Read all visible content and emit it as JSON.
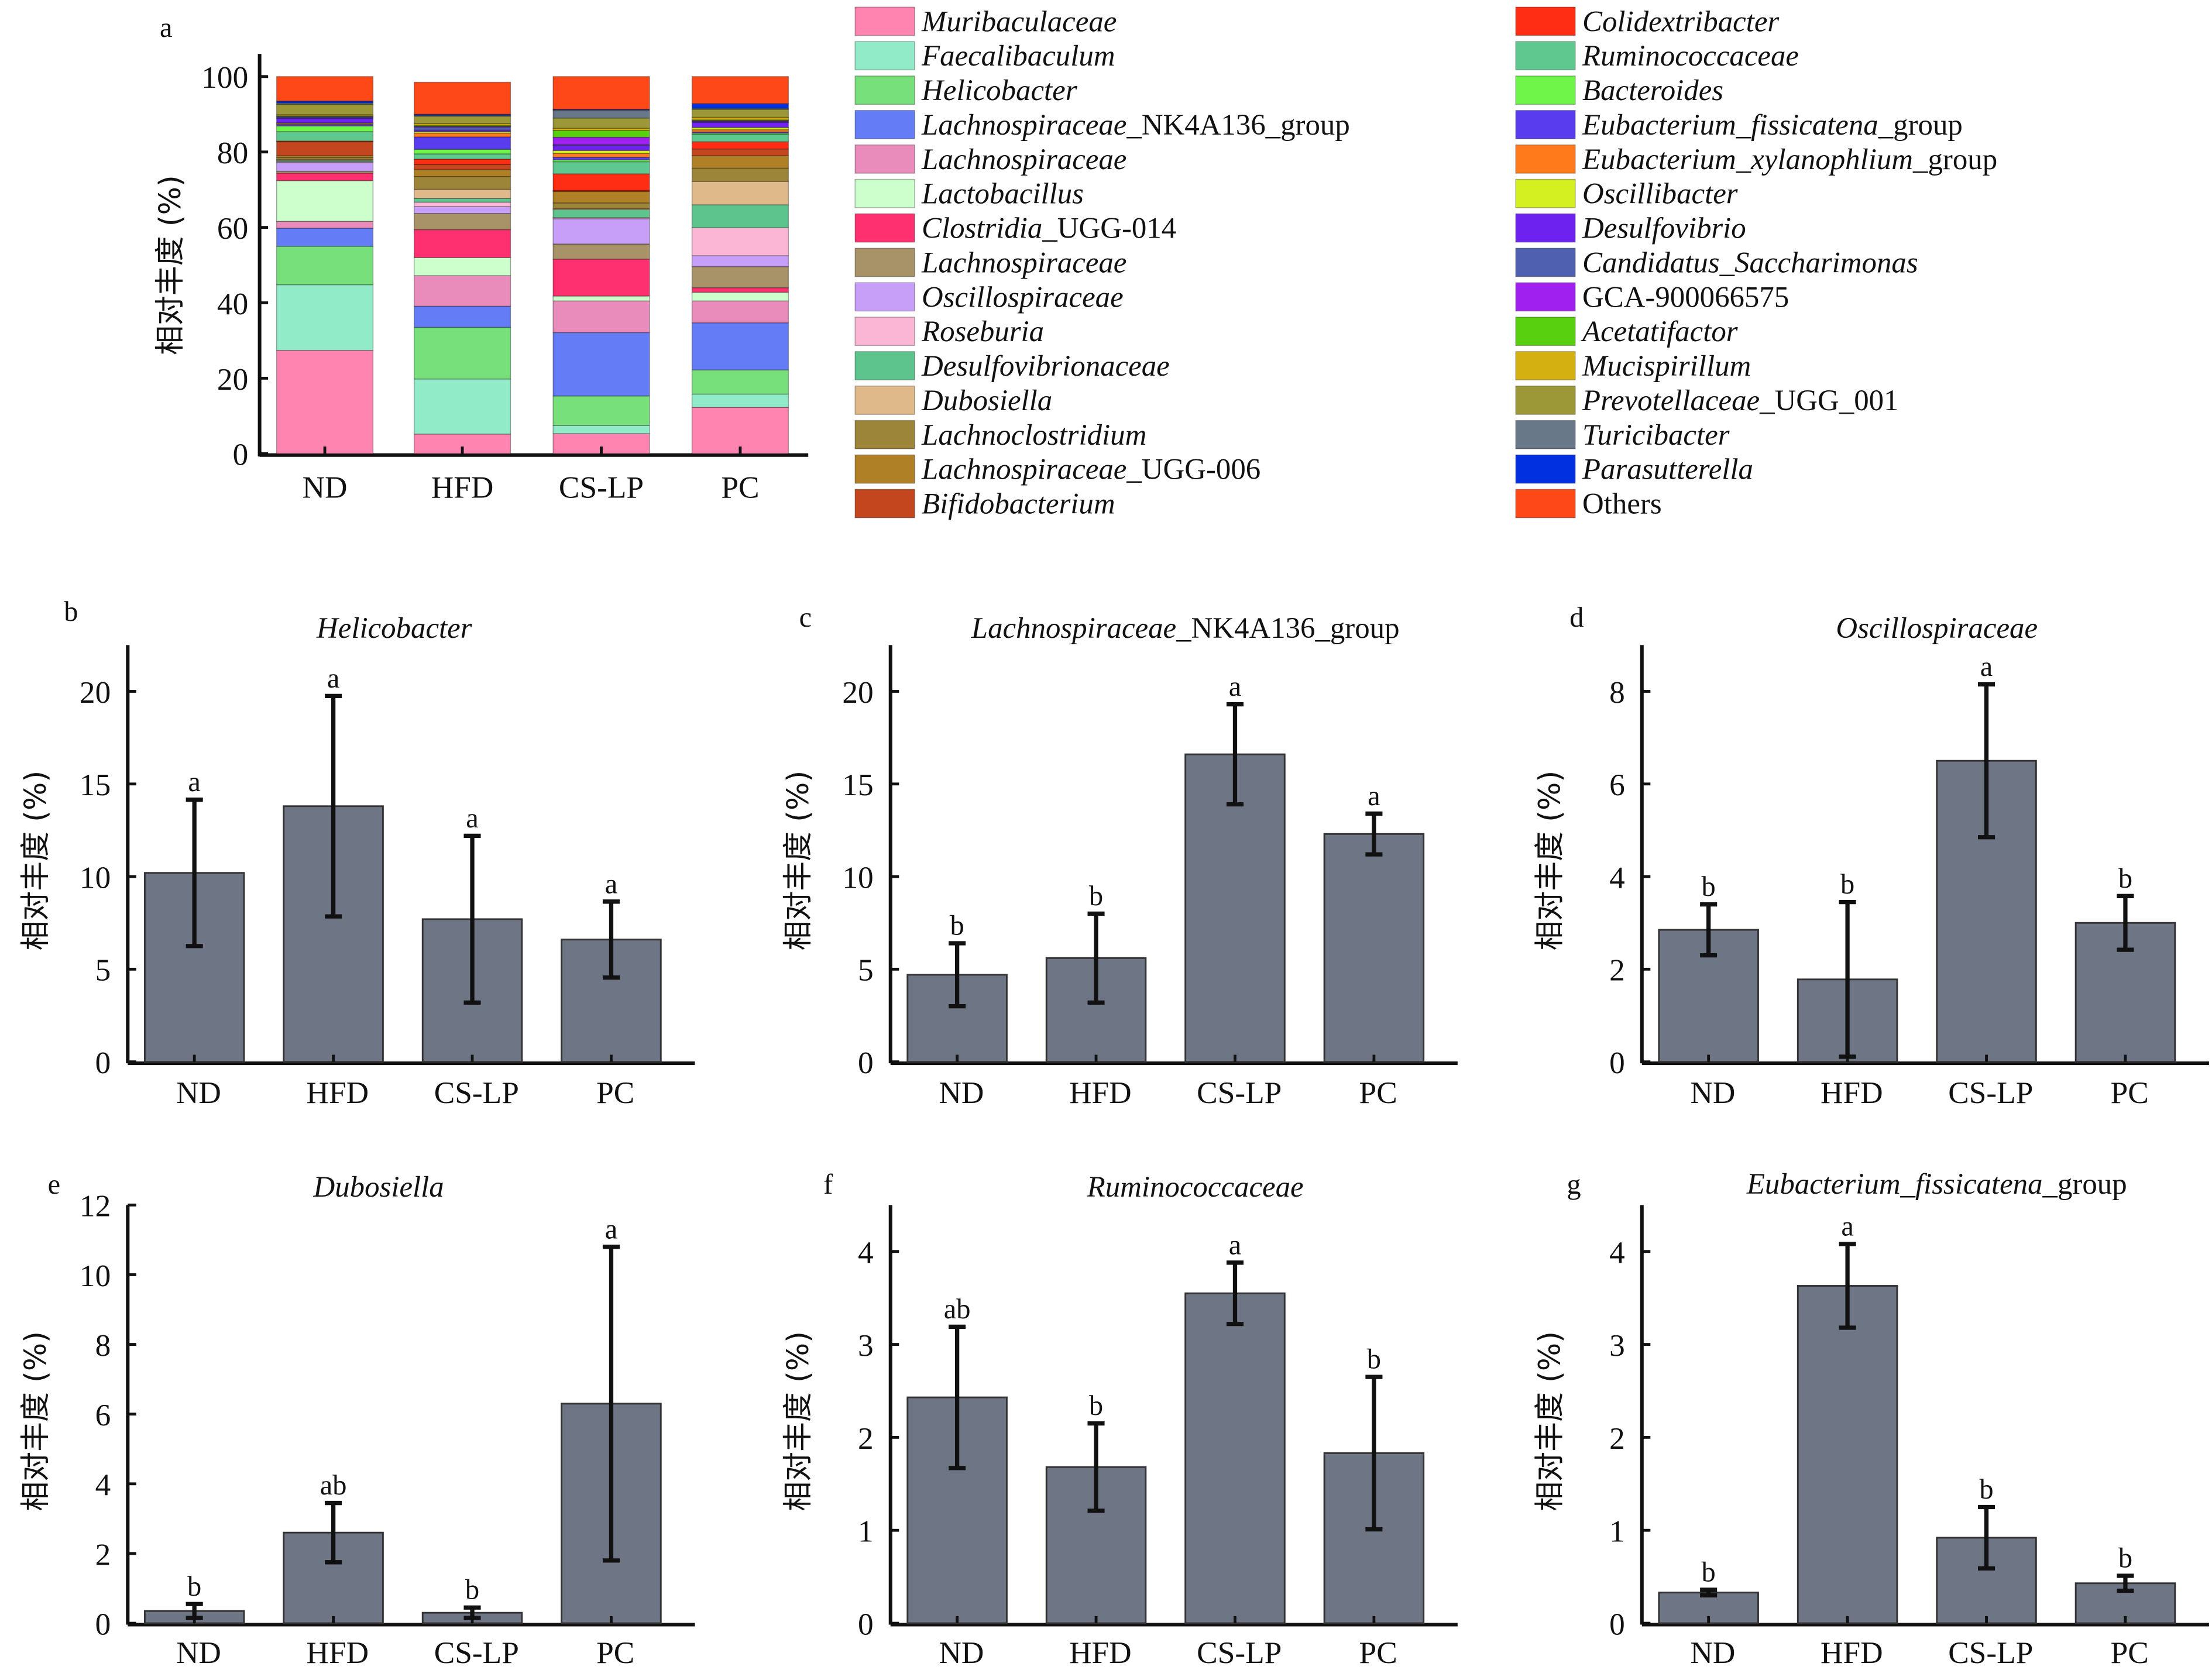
{
  "chart_data": [
    {
      "panel": "a",
      "type": "stacked-bar",
      "ylabel": "相对丰度 (%)",
      "ylim": [
        0,
        100
      ],
      "yticks": [
        0,
        20,
        40,
        60,
        80,
        100
      ],
      "categories": [
        "ND",
        "HFD",
        "CS-LP",
        "PC"
      ],
      "legend_placement": "right",
      "series": [
        {
          "italic": "Muribaculaceae",
          "plain": "",
          "color": "#FF85B0",
          "values": [
            27.4,
            5.2,
            5.3,
            12.3
          ]
        },
        {
          "italic": "Faecalibaculum",
          "plain": "",
          "color": "#92EBC8",
          "values": [
            17.4,
            14.6,
            2.2,
            3.5
          ]
        },
        {
          "italic": "Helicobacter",
          "plain": "",
          "color": "#77E07A",
          "values": [
            10.2,
            13.7,
            7.8,
            6.4
          ]
        },
        {
          "italic": "Lachnospiraceae",
          "plain": "_NK4A136_group",
          "color": "#647CF5",
          "values": [
            4.8,
            5.6,
            16.8,
            12.5
          ]
        },
        {
          "italic": "Lachnospiraceae",
          "plain": "",
          "color": "#E98BBB",
          "values": [
            1.8,
            8.1,
            8.4,
            5.8
          ]
        },
        {
          "italic": "Lactobacillus",
          "plain": "",
          "color": "#CCFFCC",
          "values": [
            10.8,
            4.8,
            1.3,
            2.3
          ]
        },
        {
          "italic": "Clostridia",
          "plain": "_UGG-014",
          "color": "#FF3070",
          "values": [
            2.0,
            7.4,
            9.8,
            1.2
          ]
        },
        {
          "italic": "Lachnospiraceae",
          "plain": "",
          "color": "#A89268",
          "values": [
            0.5,
            4.3,
            4.0,
            5.6
          ]
        },
        {
          "italic": "Oscillospiraceae",
          "plain": "",
          "color": "#C79EF8",
          "values": [
            2.3,
            1.8,
            6.7,
            2.9
          ]
        },
        {
          "italic": "Roseburia",
          "plain": "",
          "color": "#FBB6D6",
          "values": [
            0.2,
            1.2,
            0.3,
            7.4
          ]
        },
        {
          "italic": "Desulfovibrionaceae",
          "plain": "",
          "color": "#5EC48E",
          "values": [
            0.3,
            1.0,
            2.1,
            6.1
          ]
        },
        {
          "italic": "Dubosiella",
          "plain": "",
          "color": "#DFB98A",
          "values": [
            0.3,
            2.4,
            0.3,
            6.2
          ]
        },
        {
          "italic": "Lachnoclostridium",
          "plain": "",
          "color": "#9C8438",
          "values": [
            0.5,
            3.4,
            1.5,
            3.5
          ]
        },
        {
          "italic": "Lachnospiraceae",
          "plain": "_UGG-006",
          "color": "#B08026",
          "values": [
            0.5,
            1.8,
            3.0,
            3.3
          ]
        },
        {
          "italic": "Bifidobacterium",
          "plain": "",
          "color": "#C4461E",
          "values": [
            3.7,
            1.4,
            0.3,
            1.8
          ]
        },
        {
          "italic": "Colidextribacter",
          "plain": "",
          "color": "#FF2D14",
          "values": [
            0.2,
            1.4,
            4.4,
            1.9
          ]
        },
        {
          "italic": "Ruminococcaceae",
          "plain": "",
          "color": "#5FC88E",
          "values": [
            2.5,
            1.4,
            3.2,
            2.0
          ]
        },
        {
          "italic": "Bacteroides",
          "plain": "",
          "color": "#6FF54A",
          "values": [
            1.5,
            1.2,
            0.5,
            0.3
          ]
        },
        {
          "italic": "Eubacterium_fissicatena",
          "plain": "_group",
          "color": "#5A3CEF",
          "values": [
            0.4,
            3.3,
            0.7,
            0.3
          ]
        },
        {
          "italic": "Eubacterium_xylanophlium",
          "plain": "_group",
          "color": "#FF7A1A",
          "values": [
            0.2,
            1.0,
            1.0,
            0.6
          ]
        },
        {
          "italic": "Oscillibacter",
          "plain": "",
          "color": "#D4F020",
          "values": [
            0.2,
            0.4,
            0.8,
            0.6
          ]
        },
        {
          "italic": "Desulfovibrio",
          "plain": "",
          "color": "#6E22F0",
          "values": [
            1.2,
            0.4,
            1.3,
            1.4
          ]
        },
        {
          "italic": "Candidatus_Saccharimonas",
          "plain": "",
          "color": "#5060B0",
          "values": [
            0.3,
            0.8,
            0.2,
            0.2
          ]
        },
        {
          "italic": "",
          "plain": "GCA-900066575",
          "color": "#A020F0",
          "values": [
            0.2,
            0.2,
            2.0,
            0.2
          ]
        },
        {
          "italic": "Acetatifactor",
          "plain": "",
          "color": "#58D010",
          "values": [
            0.2,
            0.2,
            1.8,
            0.2
          ]
        },
        {
          "italic": "Mucispirillum",
          "plain": "",
          "color": "#D4B010",
          "values": [
            0.3,
            0.5,
            0.6,
            0.7
          ]
        },
        {
          "italic": "Prevotellaceae",
          "plain": "_UGG_001",
          "color": "#9C9838",
          "values": [
            2.7,
            2.0,
            2.7,
            2.1
          ]
        },
        {
          "italic": "Turicibacter",
          "plain": "",
          "color": "#687888",
          "values": [
            0.4,
            0.2,
            2.1,
            0.3
          ]
        },
        {
          "italic": "Parasutterella",
          "plain": "",
          "color": "#0030E0",
          "values": [
            0.5,
            0.3,
            0.2,
            1.2
          ]
        },
        {
          "italic": "",
          "plain": "Others",
          "color": "#FF4818",
          "values": [
            6.5,
            8.5,
            8.7,
            7.2
          ]
        }
      ]
    },
    {
      "panel": "b",
      "type": "bar",
      "title_italic": "Helicobacter",
      "title_plain": "",
      "ylabel": "相对丰度 (%)",
      "ylim": [
        0,
        22.5
      ],
      "yticks": [
        0,
        5,
        10,
        15,
        20
      ],
      "categories": [
        "ND",
        "HFD",
        "CS-LP",
        "PC"
      ],
      "values": [
        10.2,
        13.8,
        7.7,
        6.6
      ],
      "errors": [
        3.95,
        5.95,
        4.5,
        2.05
      ],
      "letters": [
        "a",
        "a",
        "a",
        "a"
      ],
      "color": "#6E7585"
    },
    {
      "panel": "c",
      "type": "bar",
      "title_italic": "Lachnospiraceae",
      "title_plain": "_NK4A136_group",
      "ylabel": "相对丰度 (%)",
      "ylim": [
        0,
        22.5
      ],
      "yticks": [
        0,
        5,
        10,
        15,
        20
      ],
      "categories": [
        "ND",
        "HFD",
        "CS-LP",
        "PC"
      ],
      "values": [
        4.7,
        5.6,
        16.6,
        12.3
      ],
      "errors": [
        1.7,
        2.4,
        2.7,
        1.1
      ],
      "letters": [
        "b",
        "b",
        "a",
        "a"
      ],
      "color": "#6E7585"
    },
    {
      "panel": "d",
      "type": "bar",
      "title_italic": "Oscillospiraceae",
      "title_plain": "",
      "ylabel": "相对丰度 (%)",
      "ylim": [
        0,
        9
      ],
      "yticks": [
        0,
        2,
        4,
        6,
        8
      ],
      "categories": [
        "ND",
        "HFD",
        "CS-LP",
        "PC"
      ],
      "values": [
        2.85,
        1.78,
        6.5,
        3.0
      ],
      "errors": [
        0.55,
        1.67,
        1.65,
        0.58
      ],
      "letters": [
        "b",
        "b",
        "a",
        "b"
      ],
      "color": "#6E7585"
    },
    {
      "panel": "e",
      "type": "bar",
      "title_italic": "Dubosiella",
      "title_plain": "",
      "ylabel": "相对丰度 (%)",
      "ylim": [
        0,
        12
      ],
      "yticks": [
        0,
        2,
        4,
        6,
        8,
        10,
        12
      ],
      "categories": [
        "ND",
        "HFD",
        "CS-LP",
        "PC"
      ],
      "values": [
        0.35,
        2.6,
        0.3,
        6.3
      ],
      "errors": [
        0.2,
        0.85,
        0.15,
        4.5
      ],
      "letters": [
        "b",
        "ab",
        "b",
        "a"
      ],
      "color": "#6E7585"
    },
    {
      "panel": "f",
      "type": "bar",
      "title_italic": "Ruminococcaceae",
      "title_plain": "",
      "ylabel": "相对丰度 (%)",
      "ylim": [
        0,
        4.5
      ],
      "yticks": [
        0,
        1,
        2,
        3,
        4
      ],
      "categories": [
        "ND",
        "HFD",
        "CS-LP",
        "PC"
      ],
      "values": [
        2.43,
        1.68,
        3.55,
        1.83
      ],
      "errors": [
        0.76,
        0.47,
        0.33,
        0.82
      ],
      "letters": [
        "ab",
        "b",
        "a",
        "b"
      ],
      "color": "#6E7585"
    },
    {
      "panel": "g",
      "type": "bar",
      "title_italic": "Eubacterium_fissicatena",
      "title_plain": "_group",
      "ylabel": "相对丰度 (%)",
      "ylim": [
        0,
        4.5
      ],
      "yticks": [
        0,
        1,
        2,
        3,
        4
      ],
      "categories": [
        "ND",
        "HFD",
        "CS-LP",
        "PC"
      ],
      "values": [
        0.33,
        3.63,
        0.92,
        0.43
      ],
      "errors": [
        0.03,
        0.45,
        0.33,
        0.08
      ],
      "letters": [
        "b",
        "a",
        "b",
        "b"
      ],
      "color": "#6E7585"
    }
  ]
}
